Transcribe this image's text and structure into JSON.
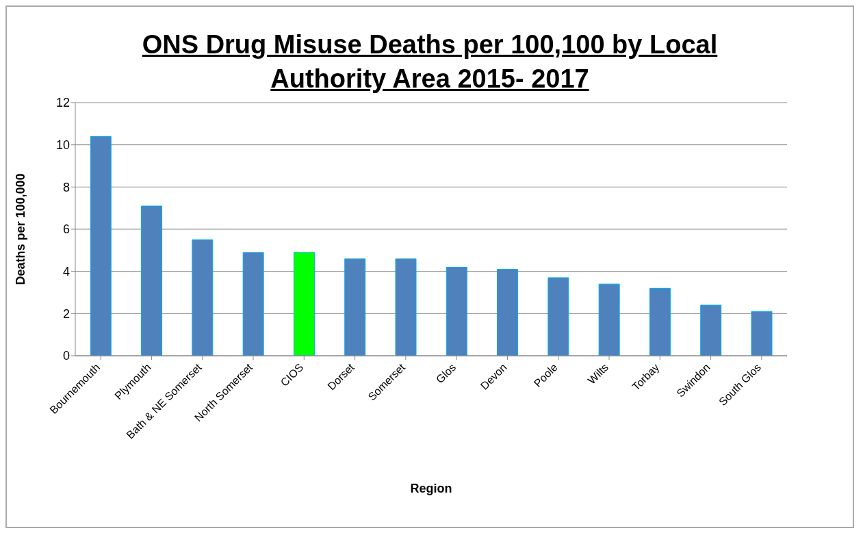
{
  "chart_data": {
    "type": "bar",
    "title": "ONS Drug Misuse Deaths per 100,100 by Local Authority Area 2015- 2017",
    "xlabel": "Region",
    "ylabel": "Deaths per 100,000",
    "categories": [
      "Bournemouth",
      "Plymouth",
      "Bath & NE Somerset",
      "North Somerset",
      "CIOS",
      "Dorset",
      "Somerset",
      "Glos",
      "Devon",
      "Poole",
      "Wilts",
      "Torbay",
      "Swindon",
      "South Glos"
    ],
    "values": [
      10.4,
      7.1,
      5.5,
      4.9,
      4.9,
      4.6,
      4.6,
      4.2,
      4.1,
      3.7,
      3.4,
      3.2,
      2.4,
      2.1
    ],
    "colors": [
      "#4f81bd",
      "#4f81bd",
      "#4f81bd",
      "#4f81bd",
      "#00ff00",
      "#4f81bd",
      "#4f81bd",
      "#4f81bd",
      "#4f81bd",
      "#4f81bd",
      "#4f81bd",
      "#4f81bd",
      "#4f81bd",
      "#4f81bd"
    ],
    "ylim": [
      0,
      12
    ],
    "yticks": [
      0,
      2,
      4,
      6,
      8,
      10,
      12
    ],
    "grid": "y"
  }
}
